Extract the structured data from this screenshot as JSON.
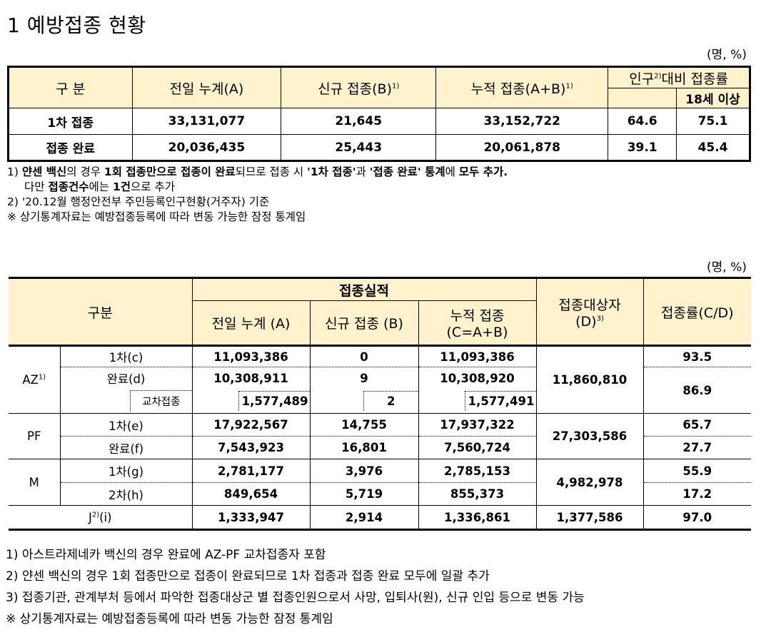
{
  "title": "1 예방접종 현황",
  "unit1": "(명, %)",
  "table1": {
    "headers": {
      "category": "구 분",
      "prev": "전일 누계(A)",
      "new": "신규 접종(B)",
      "new_sup": "1)",
      "cum": "누적 접종(A+B)",
      "cum_sup": "1)",
      "ratio": "인구",
      "ratio_sup": "2)",
      "ratio_rest": "대비 접종률",
      "adult": "18세 이상"
    },
    "rows": [
      {
        "label": "1차 접종",
        "prev": "33,131,077",
        "new": "21,645",
        "cum": "33,152,722",
        "pop": "64.6",
        "adult": "75.1"
      },
      {
        "label": "접종 완료",
        "prev": "20,036,435",
        "new": "25,443",
        "cum": "20,061,878",
        "pop": "39.1",
        "adult": "45.4"
      }
    ]
  },
  "notes1": {
    "n1_prefix": "1) ",
    "n1_a": "얀센 백신",
    "n1_b": "의 경우 ",
    "n1_c": "1회 접종만으로 접종이 완료",
    "n1_d": "되므로 접종 시 ",
    "n1_e": "'1차 접종'",
    "n1_f": "과 ",
    "n1_g": "'접종 완료' 통계",
    "n1_h": "에 ",
    "n1_i": "모두 추가.",
    "n1_line2a": "다만 ",
    "n1_line2b": "접종건수",
    "n1_line2c": "에는 ",
    "n1_line2d": "1건",
    "n1_line2e": "으로 추가",
    "n2": "2) '20.12월 행정안전부 주민등록인구현황(거주자) 기준",
    "n3": "※ 상기통계자료는 예방접종등록에 따라 변동 가능한 잠정 통계임"
  },
  "unit2": "(명, %)",
  "table2": {
    "headers": {
      "category": "구분",
      "perf": "접종실적",
      "prev": "전일 누계 (A)",
      "new": "신규 접종 (B)",
      "cum1": "누적 접종",
      "cum2": "(C=A+B)",
      "target1": "접종대상자",
      "target2": "(D)",
      "target_sup": "3)",
      "rate": "접종률(C/D)"
    },
    "az": {
      "label": "AZ",
      "sup": "1)",
      "first": {
        "label": "1차(c)",
        "prev": "11,093,386",
        "new": "0",
        "cum": "11,093,386",
        "rate": "93.5"
      },
      "done": {
        "label": "완료(d)",
        "prev": "10,308,911",
        "new": "9",
        "cum": "10,308,920",
        "rate": "86.9"
      },
      "cross": {
        "label": "교차접종",
        "prev": "1,577,489",
        "new": "2",
        "cum": "1,577,491"
      },
      "target": "11,860,810"
    },
    "pf": {
      "label": "PF",
      "first": {
        "label": "1차(e)",
        "prev": "17,922,567",
        "new": "14,755",
        "cum": "17,937,322",
        "rate": "65.7"
      },
      "done": {
        "label": "완료(f)",
        "prev": "7,543,923",
        "new": "16,801",
        "cum": "7,560,724",
        "rate": "27.7"
      },
      "target": "27,303,586"
    },
    "m": {
      "label": "M",
      "first": {
        "label": "1차(g)",
        "prev": "2,781,177",
        "new": "3,976",
        "cum": "2,785,153",
        "rate": "55.9"
      },
      "second": {
        "label": "2차(h)",
        "prev": "849,654",
        "new": "5,719",
        "cum": "855,373",
        "rate": "17.2"
      },
      "target": "4,982,978"
    },
    "j": {
      "label_a": "J",
      "sup": "2)",
      "label_b": "(i)",
      "prev": "1,333,947",
      "new": "2,914",
      "cum": "1,336,861",
      "target": "1,377,586",
      "rate": "97.0"
    }
  },
  "notes2": [
    "1) 아스트라제네카 백신의 경우 완료에 AZ-PF 교차접종자 포함",
    "2) 얀센 백신의 경우 1회 접종만으로 접종이 완료되므로 1차 접종과 접종 완료 모두에 일괄 추가",
    "3) 접종기관, 관계부처 등에서 파악한 접종대상군 별 접종인원으로서 사망, 입퇴사(원), 신규 인입 등으로 변동 가능",
    " ※ 상기통계자료는 예방접종등록에 따라 변동 가능한 잠정 통계임"
  ]
}
